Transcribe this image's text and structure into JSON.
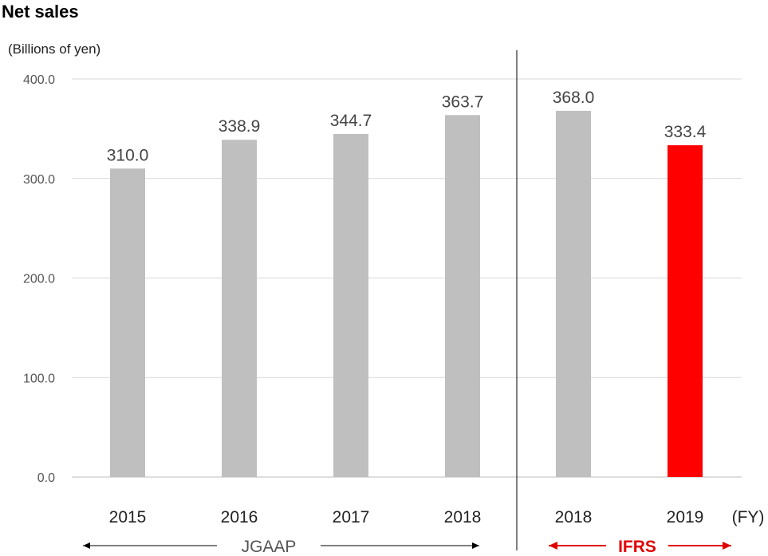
{
  "chart_data": {
    "type": "bar",
    "title": "Net sales",
    "ylabel": "(Billions of yen)",
    "xlabel_suffix": "(FY)",
    "ylim": [
      0,
      400
    ],
    "yticks": [
      "0.0",
      "100.0",
      "200.0",
      "300.0",
      "400.0"
    ],
    "grid": true,
    "categories": [
      "2015",
      "2016",
      "2017",
      "2018",
      "2018",
      "2019"
    ],
    "values": [
      310.0,
      338.9,
      344.7,
      363.7,
      368.0,
      333.4
    ],
    "value_labels": [
      "310.0",
      "338.9",
      "344.7",
      "363.7",
      "368.0",
      "333.4"
    ],
    "bar_colors": [
      "#bfbfbf",
      "#bfbfbf",
      "#bfbfbf",
      "#bfbfbf",
      "#bfbfbf",
      "#ff0000"
    ],
    "standards": [
      {
        "label": "JGAAP",
        "color": "#555555",
        "from_index": 0,
        "to_index": 3
      },
      {
        "label": "IFRS",
        "color": "#e00000",
        "from_index": 4,
        "to_index": 5
      }
    ]
  }
}
